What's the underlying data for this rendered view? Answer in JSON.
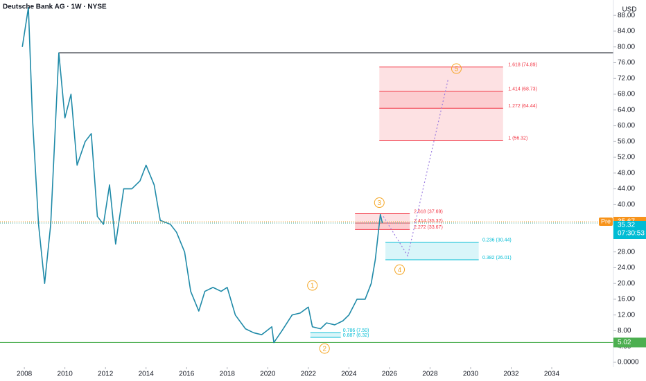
{
  "chart_data": {
    "type": "line",
    "title": "Deutsche Bank AG · 1W · NYSE",
    "currency": "USD",
    "color": "#1f8aa8",
    "x": [
      2007.9,
      2008.2,
      2008.4,
      2008.7,
      2009.0,
      2009.3,
      2009.7,
      2010.0,
      2010.3,
      2010.6,
      2011.0,
      2011.3,
      2011.6,
      2011.9,
      2012.2,
      2012.5,
      2012.9,
      2013.3,
      2013.7,
      2014.0,
      2014.4,
      2014.7,
      2015.2,
      2015.5,
      2015.9,
      2016.2,
      2016.6,
      2016.9,
      2017.3,
      2017.7,
      2018.0,
      2018.4,
      2018.9,
      2019.3,
      2019.7,
      2020.2,
      2020.3,
      2020.7,
      2021.2,
      2021.6,
      2022.0,
      2022.2,
      2022.6,
      2022.9,
      2023.3,
      2023.7,
      2024.0,
      2024.4,
      2024.8,
      2025.1,
      2025.3,
      2025.55,
      2025.65
    ],
    "values": [
      80,
      90,
      62,
      35,
      20,
      35,
      78.5,
      62,
      68,
      50,
      56,
      58,
      37,
      35,
      45,
      30,
      44,
      44,
      46,
      50,
      45,
      36,
      35,
      33,
      28,
      18,
      13,
      18,
      19,
      18,
      19,
      12,
      8.5,
      7.5,
      7,
      9,
      5,
      8,
      12,
      12.5,
      14,
      9,
      8.5,
      10,
      9.5,
      10.5,
      12,
      16,
      16,
      20,
      26,
      37.5,
      35.3
    ],
    "projection": {
      "color": "#9c7ce0",
      "x": [
        2025.7,
        2026.9,
        2028.9
      ],
      "values": [
        37,
        27,
        72
      ]
    },
    "xlim": [
      2006.8,
      2037.04
    ],
    "ylim": [
      0,
      91.9
    ],
    "xticks": [
      2008,
      2010,
      2012,
      2014,
      2016,
      2018,
      2020,
      2022,
      2024,
      2026,
      2028,
      2030,
      2032,
      2034
    ],
    "yticks": [
      {
        "value": 0,
        "label": "0.0000"
      },
      {
        "value": 4,
        "label": "4.00"
      },
      {
        "value": 8,
        "label": "8.00"
      },
      {
        "value": 12,
        "label": "12.00"
      },
      {
        "value": 16,
        "label": "16.00"
      },
      {
        "value": 20,
        "label": "20.00"
      },
      {
        "value": 24,
        "label": "24.00"
      },
      {
        "value": 28,
        "label": "28.00"
      },
      {
        "value": 32,
        "label": "32.00"
      },
      {
        "value": 36,
        "label": "36.00"
      },
      {
        "value": 40,
        "label": "40.00"
      },
      {
        "value": 44,
        "label": "44.00"
      },
      {
        "value": 48,
        "label": "48.00"
      },
      {
        "value": 52,
        "label": "52.00"
      },
      {
        "value": 56,
        "label": "56.00"
      },
      {
        "value": 60,
        "label": "60.00"
      },
      {
        "value": 64,
        "label": "64.00"
      },
      {
        "value": 68,
        "label": "68.00"
      },
      {
        "value": 72,
        "label": "72.00"
      },
      {
        "value": 76,
        "label": "76.00"
      },
      {
        "value": 80,
        "label": "80.00"
      },
      {
        "value": 84,
        "label": "84.00"
      },
      {
        "value": 88,
        "label": "88.00"
      }
    ],
    "levels": [
      {
        "value": 78.5,
        "color": "#131722",
        "x0": 2009.7
      },
      {
        "value": 5.02,
        "color": "#4caf50",
        "x0": 2006.8
      }
    ],
    "pre_price": {
      "label": "Pre",
      "value": 35.67,
      "color": "#f7931a"
    },
    "last_price": {
      "value": 35.32,
      "countdown": "07:30:53",
      "color": "#00bcd4"
    },
    "fib_zones": [
      {
        "color": "#f23645",
        "x": [
          2025.5,
          2031.6
        ],
        "levels": [
          {
            "value": 74.89,
            "label": "1.618 (74.89)"
          },
          {
            "value": 68.73,
            "label": "1.414 (68.73)"
          },
          {
            "value": 64.44,
            "label": "1.272 (64.44)"
          },
          {
            "value": 56.32,
            "label": "1 (56.32)"
          }
        ]
      },
      {
        "color": "#f23645",
        "x": [
          2024.3,
          2027.0
        ],
        "levels": [
          {
            "value": 37.69,
            "label": "2.618 (37.69)"
          },
          {
            "value": 35.32,
            "label": "2.414 (35.32)"
          },
          {
            "value": 33.67,
            "label": "2.272 (33.67)"
          }
        ]
      },
      {
        "color": "#00bcd4",
        "x": [
          2025.8,
          2030.4
        ],
        "levels": [
          {
            "value": 30.44,
            "label": "0.236 (30.44)"
          },
          {
            "value": 26.01,
            "label": "0.382 (26.01)"
          }
        ]
      },
      {
        "color": "#00bcd4",
        "x": [
          2022.1,
          2023.6
        ],
        "levels": [
          {
            "value": 7.5,
            "label": "0.786 (7.50)"
          },
          {
            "value": 6.32,
            "label": "0.887 (6.32)"
          }
        ]
      }
    ],
    "waves": {
      "color": "#f5a623",
      "points": [
        {
          "label": "1",
          "x": 2022.2,
          "y": 19.5
        },
        {
          "label": "2",
          "x": 2022.8,
          "y": 3.5
        },
        {
          "label": "3",
          "x": 2025.5,
          "y": 40.5
        },
        {
          "label": "4",
          "x": 2026.5,
          "y": 23.5
        },
        {
          "label": "5",
          "x": 2029.3,
          "y": 74.5
        }
      ]
    }
  }
}
